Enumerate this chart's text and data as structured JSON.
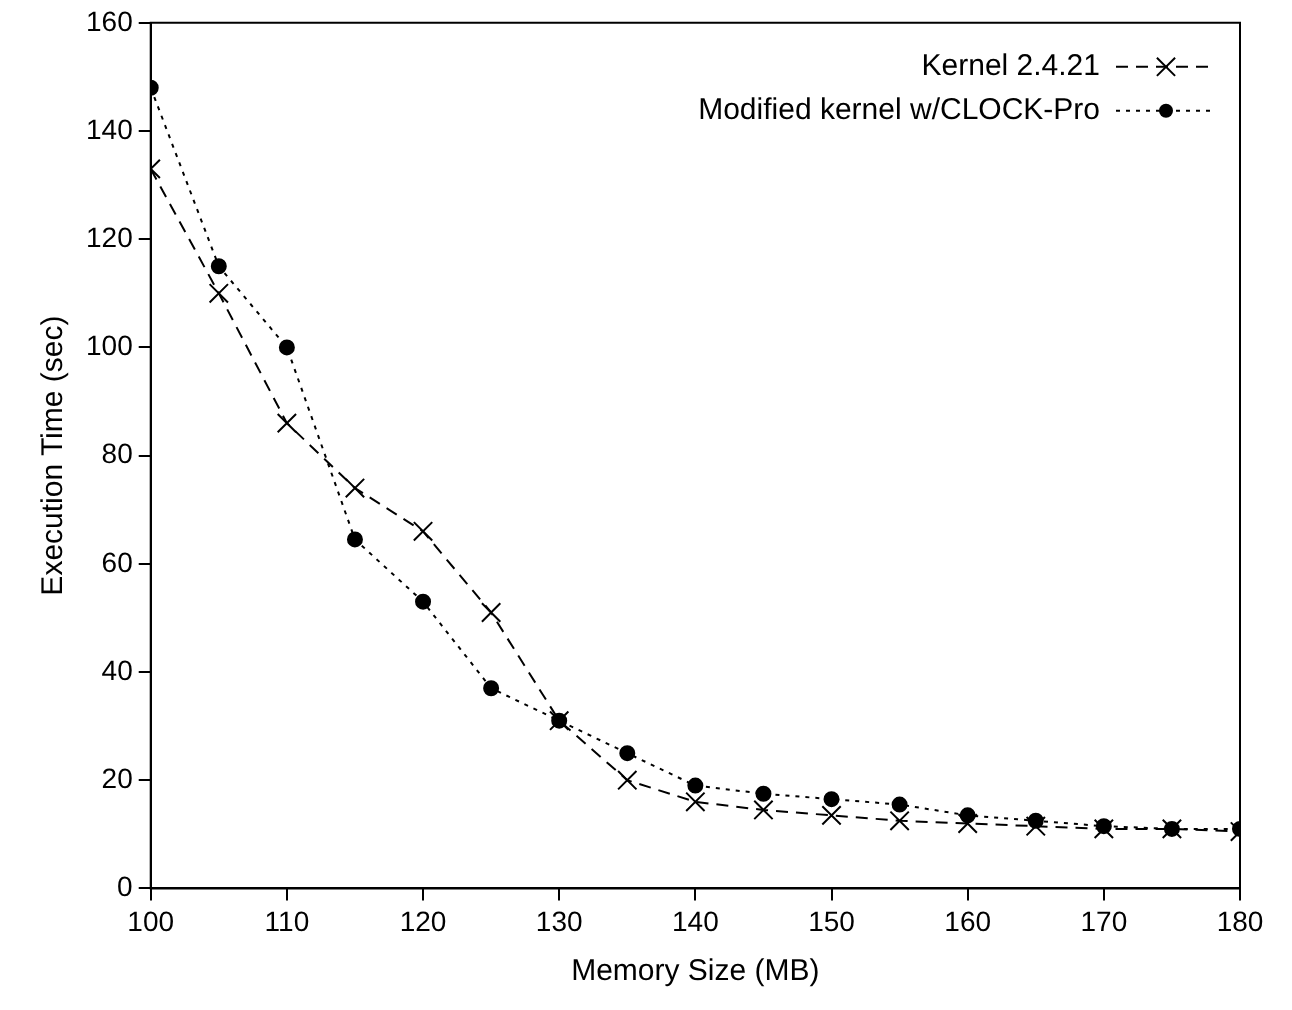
{
  "chart_data": {
    "type": "line",
    "xlabel": "Memory Size (MB)",
    "ylabel": "Execution Time (sec)",
    "x": [
      100,
      105,
      110,
      115,
      120,
      125,
      130,
      135,
      140,
      145,
      150,
      155,
      160,
      165,
      170,
      175,
      180
    ],
    "xlim": [
      100,
      180
    ],
    "xticks": [
      100,
      110,
      120,
      130,
      140,
      150,
      160,
      170,
      180
    ],
    "ylim": [
      0,
      160
    ],
    "yticks": [
      0,
      20,
      40,
      60,
      80,
      100,
      120,
      140,
      160
    ],
    "grid": false,
    "legend": "top right",
    "series": [
      {
        "name": "Kernel 2.4.21",
        "color": "#000000",
        "marker": "cross",
        "line_style": "dashed",
        "values": [
          133,
          110,
          86,
          74,
          66,
          51,
          31,
          20,
          16,
          14.5,
          13.5,
          12.5,
          12,
          11.5,
          11,
          11,
          10.5
        ]
      },
      {
        "name": "Modified kernel w/CLOCK-Pro",
        "color": "#000000",
        "marker": "circle",
        "line_style": "dotted",
        "values": [
          148,
          115,
          100,
          64.5,
          53,
          37,
          31,
          25,
          19,
          17.5,
          16.5,
          15.5,
          13.5,
          12.5,
          11.5,
          11,
          11
        ]
      }
    ]
  }
}
